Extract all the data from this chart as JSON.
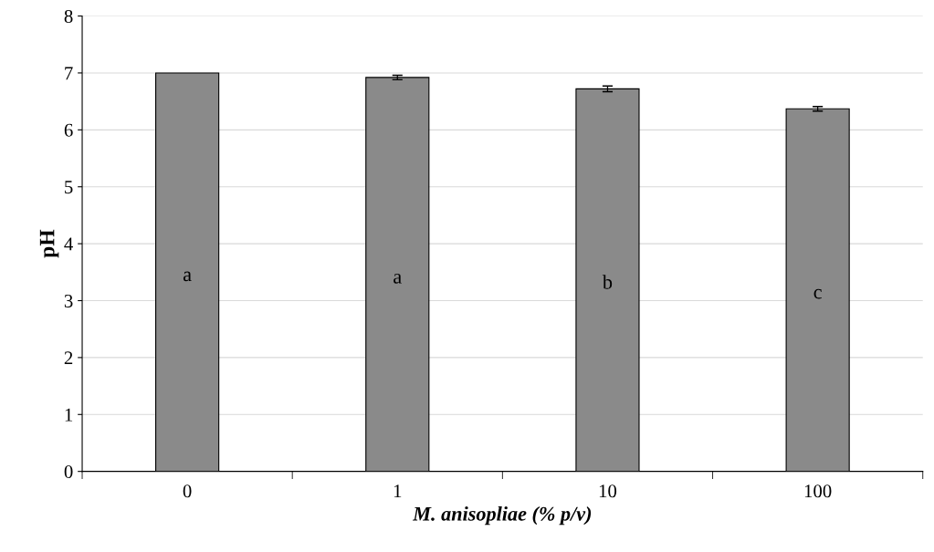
{
  "chart_data": {
    "type": "bar",
    "xlabel": "M. anisopliae (% p/v)",
    "ylabel": "pH",
    "categories": [
      "0",
      "1",
      "10",
      "100"
    ],
    "values": [
      7.0,
      6.92,
      6.72,
      6.37
    ],
    "errors": [
      null,
      0.04,
      0.05,
      0.04
    ],
    "color": "#8a8a8a",
    "ylim": [
      0,
      8
    ],
    "yticks": [
      0,
      1,
      2,
      3,
      4,
      5,
      6,
      7,
      8
    ],
    "grid": "y",
    "annotations": [
      "a",
      "a",
      "b",
      "c"
    ]
  }
}
